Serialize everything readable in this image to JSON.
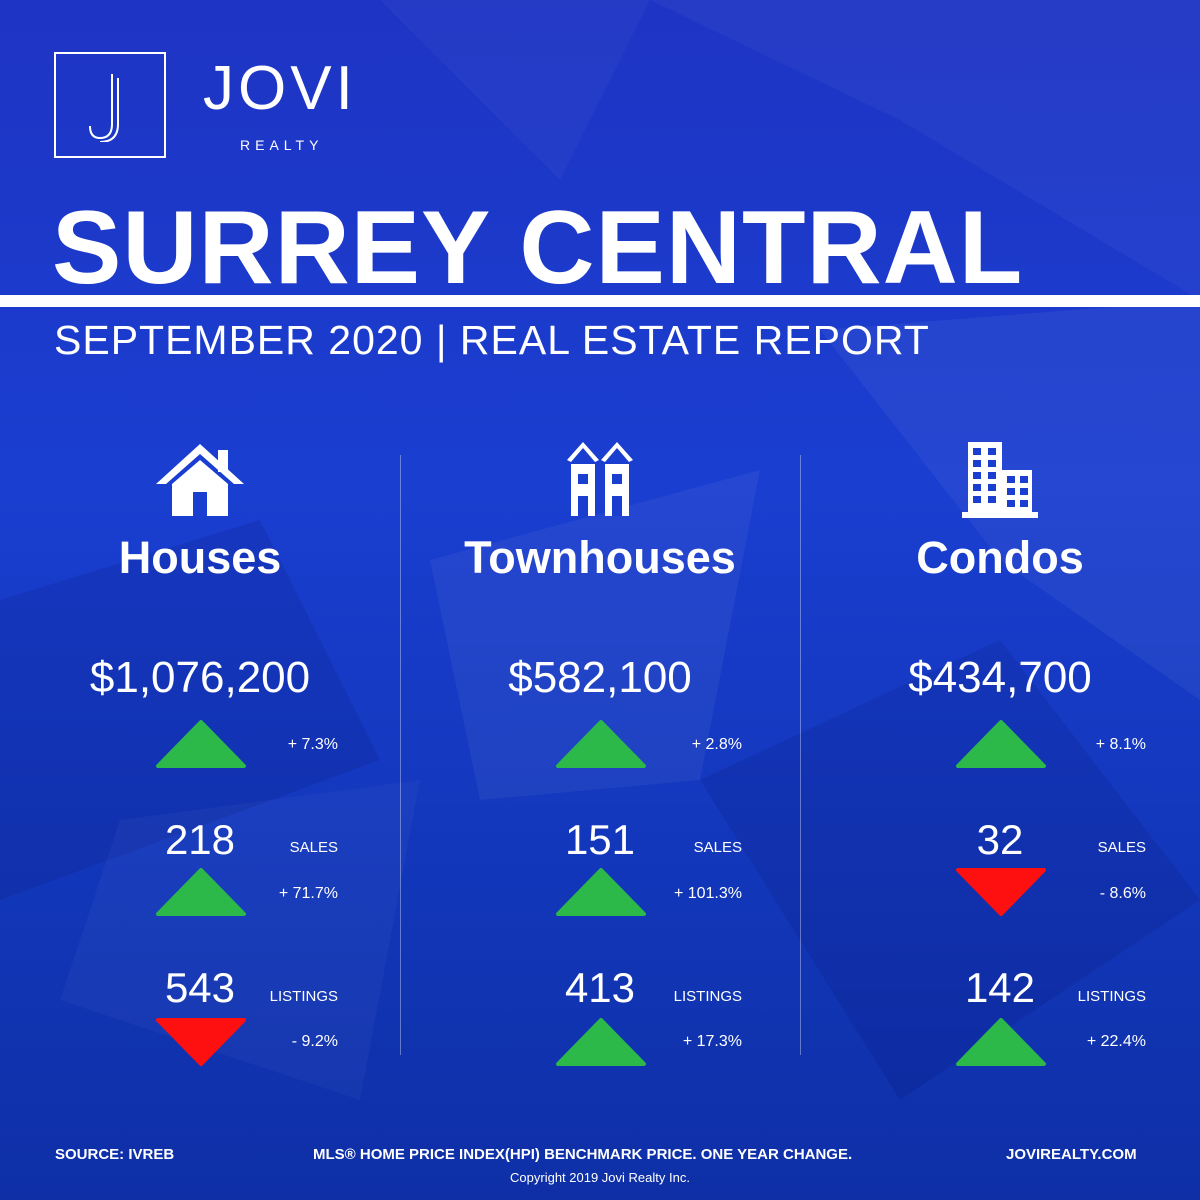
{
  "brand": {
    "name": "JOVI",
    "sub": "REALTY"
  },
  "title": "SURREY CENTRAL",
  "subtitle": "SEPTEMBER 2020 | REAL ESTATE REPORT",
  "colors": {
    "up": "#2db84a",
    "down": "#ff1010",
    "background": "#1a3ed0"
  },
  "columns": [
    {
      "icon": "house-icon",
      "name": "Houses",
      "price": "$1,076,200",
      "price_trend": "up",
      "price_change": "+ 7.3%",
      "sales": "218",
      "sales_label": "SALES",
      "sales_trend": "up",
      "sales_change": "+ 71.7%",
      "listings": "543",
      "listings_label": "LISTINGS",
      "listings_trend": "down",
      "listings_change": "- 9.2%"
    },
    {
      "icon": "townhouse-icon",
      "name": "Townhouses",
      "price": "$582,100",
      "price_trend": "up",
      "price_change": "+ 2.8%",
      "sales": "151",
      "sales_label": "SALES",
      "sales_trend": "up",
      "sales_change": "+ 101.3%",
      "listings": "413",
      "listings_label": "LISTINGS",
      "listings_trend": "up",
      "listings_change": "+ 17.3%"
    },
    {
      "icon": "condo-building-icon",
      "name": "Condos",
      "price": "$434,700",
      "price_trend": "up",
      "price_change": "+ 8.1%",
      "sales": "32",
      "sales_label": "SALES",
      "sales_trend": "down",
      "sales_change": "- 8.6%",
      "listings": "142",
      "listings_label": "LISTINGS",
      "listings_trend": "up",
      "listings_change": "+ 22.4%"
    }
  ],
  "footer": {
    "source": "SOURCE:  IVREB",
    "note": "MLS® HOME PRICE INDEX(HPI) BENCHMARK PRICE. ONE YEAR CHANGE.",
    "website": "JOVIREALTY.COM",
    "copyright": "Copyright 2019 Jovi Realty Inc."
  }
}
